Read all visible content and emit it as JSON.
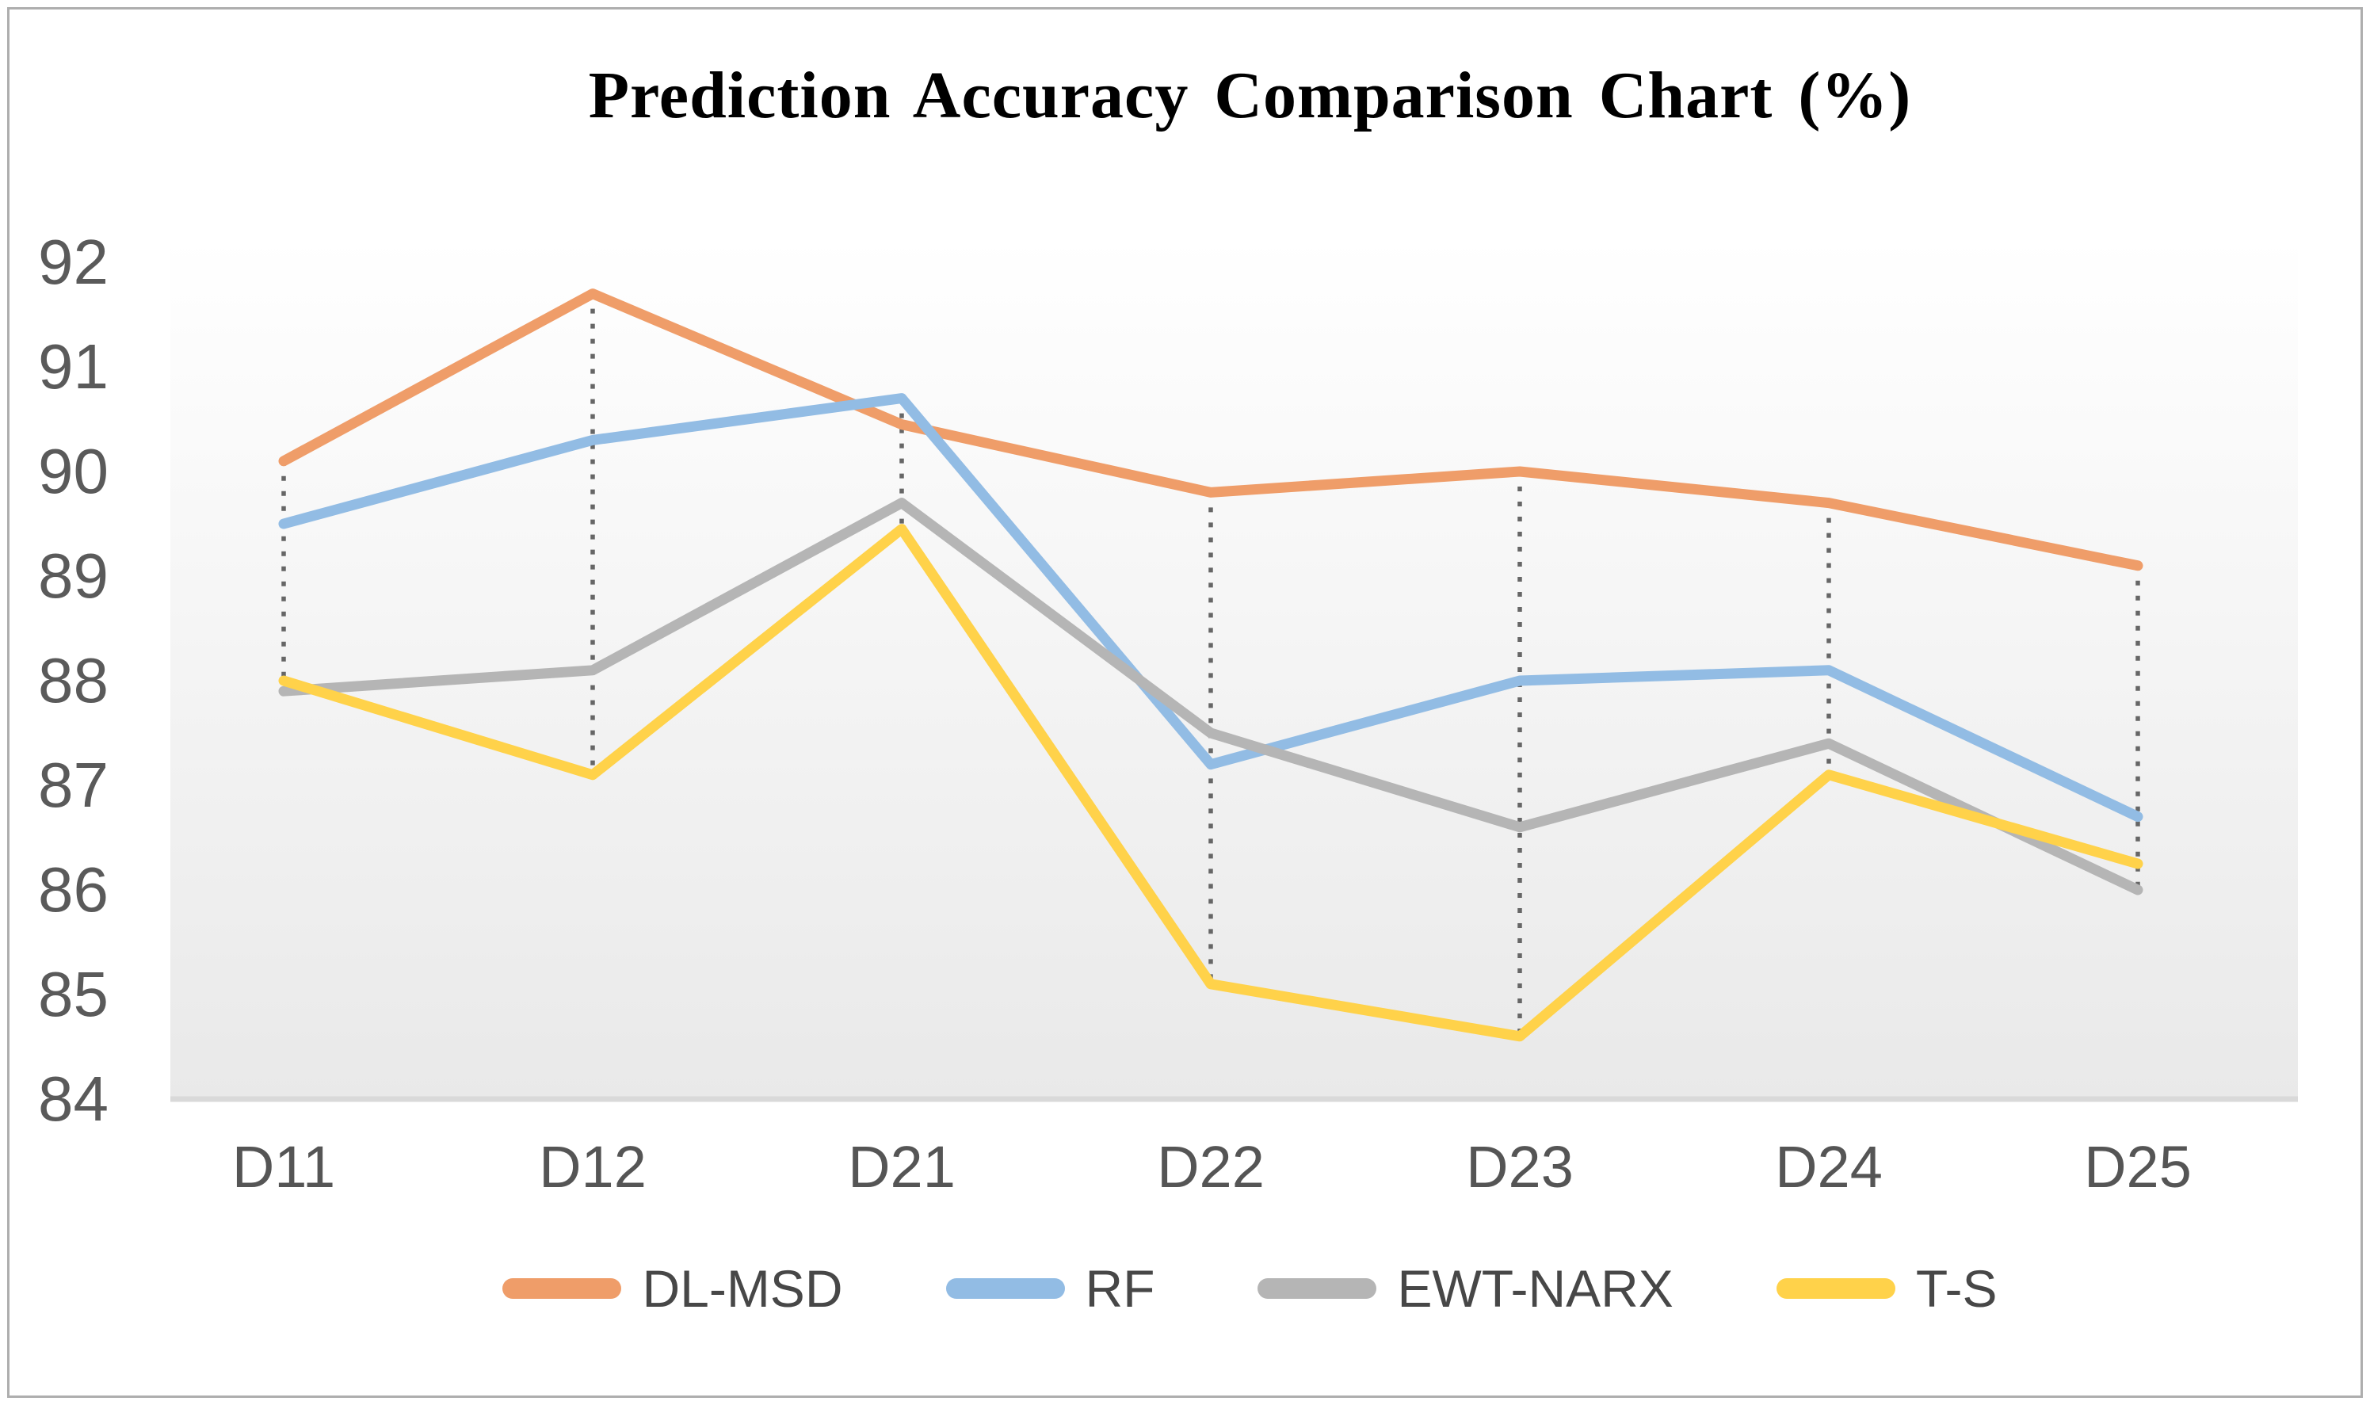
{
  "title": "Prediction Accuracy Comparison Chart (%)",
  "chart_data": {
    "type": "line",
    "title": "Prediction Accuracy Comparison Chart (%)",
    "categories": [
      "D11",
      "D12",
      "D21",
      "D22",
      "D23",
      "D24",
      "D25"
    ],
    "series": [
      {
        "name": "DL-MSD",
        "color": "#EF9D69",
        "values": [
          90.1,
          91.7,
          90.45,
          89.8,
          90.0,
          89.7,
          89.1
        ]
      },
      {
        "name": "RF",
        "color": "#92BCE4",
        "values": [
          89.5,
          90.3,
          90.7,
          87.2,
          88.0,
          88.1,
          86.7
        ]
      },
      {
        "name": "EWT-NARX",
        "color": "#B5B5B5",
        "values": [
          87.9,
          88.1,
          89.7,
          87.5,
          86.6,
          87.4,
          86.0
        ]
      },
      {
        "name": "T-S",
        "color": "#FFD24A",
        "values": [
          88.0,
          87.1,
          89.45,
          85.1,
          84.6,
          87.1,
          86.25
        ]
      }
    ],
    "y_ticks": [
      92,
      91,
      90,
      89,
      88,
      87,
      86,
      85,
      84
    ],
    "ylim": [
      84,
      92
    ],
    "xlabel": "",
    "ylabel": "",
    "grid": false,
    "high_low_lines": true,
    "legend_position": "bottom"
  },
  "styles": {
    "frame_border_color": "#aeaeae",
    "plot_gradient_top": "#ffffff",
    "plot_gradient_bottom": "#e9e9e9",
    "axis_line_color": "#d9d9d9",
    "high_low_line_color": "#666666",
    "tick_label_color": "#5a5a5a",
    "legend_text_color": "#474747",
    "title_color": "#000000"
  }
}
